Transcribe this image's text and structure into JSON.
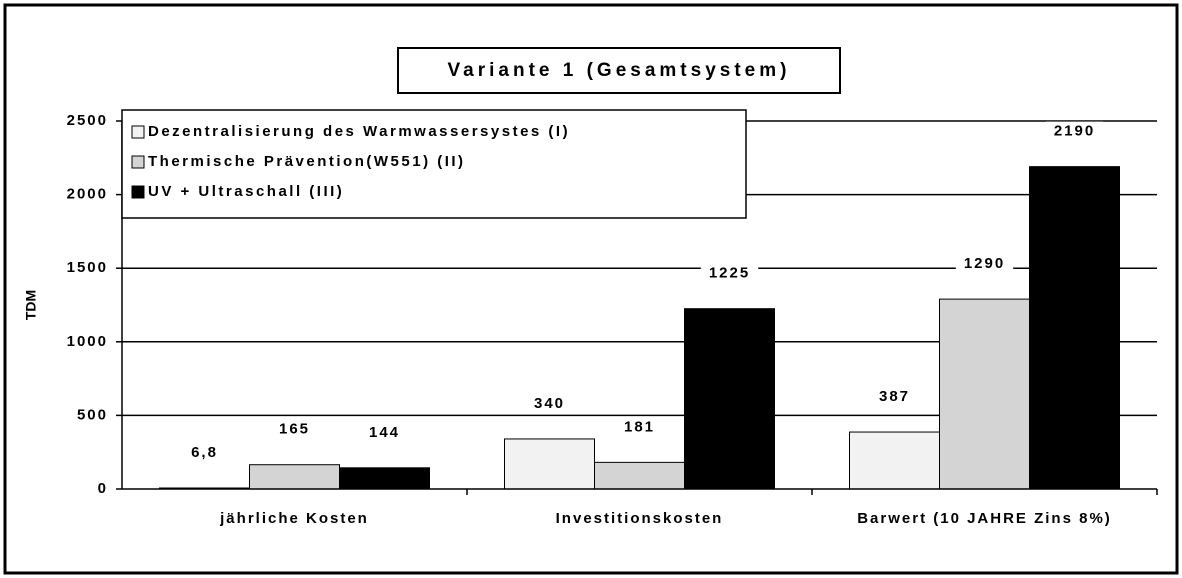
{
  "chart_data": {
    "type": "bar",
    "title": "Variante 1 (Gesamtsystem)",
    "y_label": "TDM",
    "categories": [
      "jährliche Kosten",
      "Investitionskosten",
      "Barwert (10 JAHRE Zins 8%)"
    ],
    "series": [
      {
        "name": "Dezentralisierung des Warmwassersystes (I)",
        "color": "#f2f2f2",
        "values": [
          6.8,
          340,
          387
        ],
        "value_labels": [
          "6,8",
          "340",
          "387"
        ]
      },
      {
        "name": "Thermische Prävention(W551) (II)",
        "color": "#d4d4d4",
        "values": [
          165,
          181,
          1290
        ],
        "value_labels": [
          "165",
          "181",
          "1290"
        ]
      },
      {
        "name": "UV + Ultraschall (III)",
        "color": "#000000",
        "values": [
          144,
          1225,
          2190
        ],
        "value_labels": [
          "144",
          "1225",
          "2190"
        ]
      }
    ],
    "ylim": [
      0,
      2500
    ],
    "yticks": [
      0,
      500,
      1000,
      1500,
      2000,
      2500
    ],
    "grid": true,
    "legend": "top-left"
  }
}
